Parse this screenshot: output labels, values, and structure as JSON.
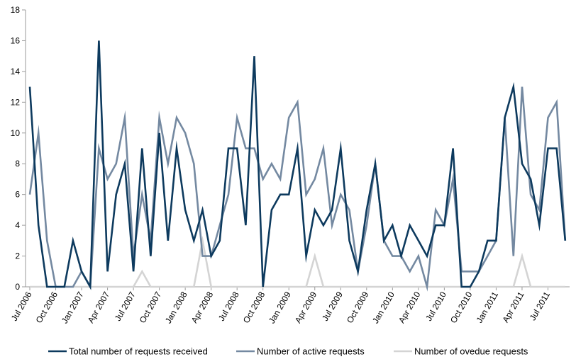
{
  "chart_data": {
    "type": "line",
    "title": "",
    "xlabel": "",
    "ylabel": "",
    "ylim": [
      0,
      18
    ],
    "yticks": [
      0,
      2,
      4,
      6,
      8,
      10,
      12,
      14,
      16,
      18
    ],
    "grid": false,
    "legend_position": "bottom",
    "x": [
      "Jul 2006",
      "Aug 2006",
      "Sep 2006",
      "Oct 2006",
      "Nov 2006",
      "Dec 2006",
      "Jan 2007",
      "Feb 2007",
      "Mar 2007",
      "Apr 2007",
      "May 2007",
      "Jun 2007",
      "Jul 2007",
      "Aug 2007",
      "Sep 2007",
      "Oct 2007",
      "Nov 2007",
      "Dec 2007",
      "Jan 2008",
      "Feb 2008",
      "Mar 2008",
      "Apr 2008",
      "May 2008",
      "Jun 2008",
      "Jul 2008",
      "Aug 2008",
      "Sep 2008",
      "Oct 2008",
      "Nov 2008",
      "Dec 2008",
      "Jan 2009",
      "Feb 2009",
      "Mar 2009",
      "Apr 2009",
      "May 2009",
      "Jun 2009",
      "Jul 2009",
      "Aug 2009",
      "Sep 2009",
      "Oct 2009",
      "Nov 2009",
      "Dec 2009",
      "Jan 2010",
      "Feb 2010",
      "Mar 2010",
      "Apr 2010",
      "May 2010",
      "Jun 2010",
      "Jul 2010",
      "Aug 2010",
      "Sep 2010",
      "Oct 2010",
      "Nov 2010",
      "Dec 2010",
      "Jan 2011",
      "Feb 2011",
      "Mar 2011",
      "Apr 2011",
      "May 2011",
      "Jun 2011",
      "Jul 2011",
      "Aug 2011",
      "Sep 2011"
    ],
    "xtick_labels": [
      "Jul 2006",
      "Oct 2006",
      "Jan 2007",
      "Apr 2007",
      "Jul 2007",
      "Oct 2007",
      "Jan 2008",
      "Apr 2008",
      "Jul 2008",
      "Oct 2008",
      "Jan 2009",
      "Apr 2009",
      "Jul 2009",
      "Oct 2009",
      "Jan 2010",
      "Apr 2010",
      "Jul 2010",
      "Oct 2010",
      "Jan 2011",
      "Apr 2011",
      "Jul 2011"
    ],
    "series": [
      {
        "name": "Total number of requests received",
        "color": "#0d3a5e",
        "values": [
          13,
          4,
          0,
          0,
          0,
          3,
          1,
          0,
          16,
          1,
          6,
          8,
          1,
          9,
          2,
          10,
          3,
          9,
          5,
          3,
          5,
          2,
          3,
          9,
          9,
          4,
          15,
          0,
          5,
          6,
          6,
          9,
          2,
          5,
          4,
          5,
          9,
          3,
          1,
          5,
          8,
          3,
          4,
          2,
          4,
          3,
          2,
          4,
          4,
          9,
          0,
          0,
          1,
          3,
          3,
          11,
          13,
          8,
          7,
          4,
          9,
          9,
          3
        ]
      },
      {
        "name": "Number of active requests",
        "color": "#7489a1",
        "values": [
          6,
          10,
          3,
          0,
          0,
          0,
          1,
          0,
          9,
          7,
          8,
          11,
          2,
          6,
          3,
          11,
          8,
          11,
          10,
          8,
          2,
          2,
          4,
          6,
          11,
          9,
          9,
          7,
          8,
          7,
          11,
          12,
          6,
          7,
          9,
          4,
          6,
          5,
          1,
          4,
          8,
          3,
          2,
          2,
          1,
          2,
          0,
          5,
          4,
          7,
          1,
          1,
          1,
          2,
          3,
          11,
          2,
          13,
          6,
          5,
          11,
          12,
          3
        ]
      },
      {
        "name": "Number of ovedue requests",
        "color": "#d4d4d4",
        "values": [
          0,
          0,
          0,
          0,
          0,
          0,
          0,
          0,
          0,
          0,
          0,
          0,
          0,
          1,
          0,
          0,
          0,
          0,
          0,
          0,
          3,
          0,
          0,
          0,
          0,
          0,
          0,
          0,
          0,
          0,
          0,
          0,
          0,
          2,
          0,
          0,
          0,
          0,
          0,
          0,
          0,
          0,
          0,
          0,
          0,
          0,
          0,
          0,
          0,
          0,
          0,
          0,
          0,
          0,
          0,
          0,
          0,
          2,
          0,
          0,
          0,
          0,
          0
        ]
      }
    ]
  }
}
